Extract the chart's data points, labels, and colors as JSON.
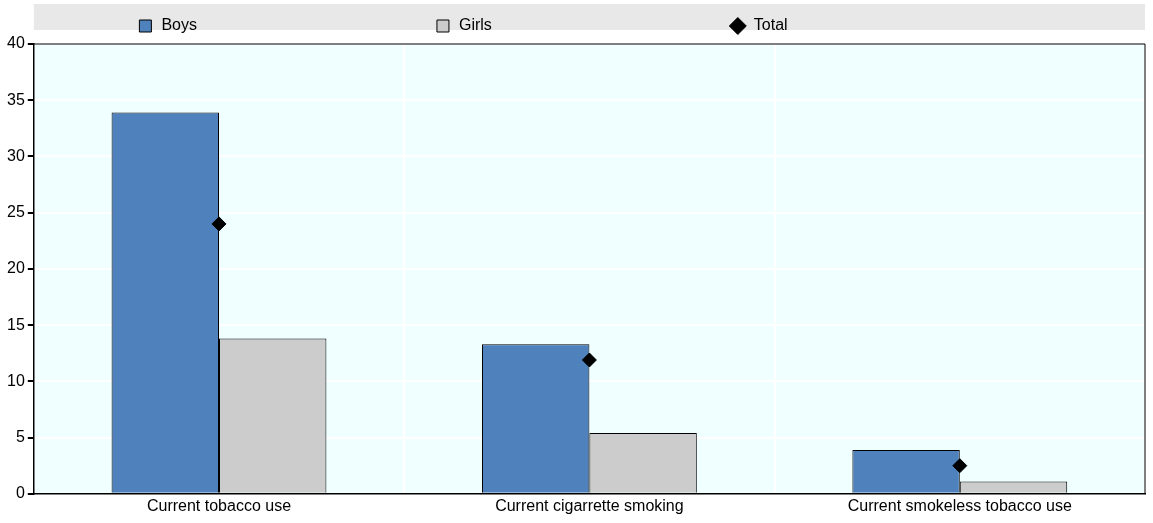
{
  "chart_data": {
    "type": "bar",
    "categories": [
      "Current tobacco use",
      "Current cigarrette smoking",
      "Current smokeless tobacco use"
    ],
    "series": [
      {
        "name": "Boys",
        "color": "#4f81bd",
        "values": [
          33.9,
          13.3,
          3.9
        ]
      },
      {
        "name": "Girls",
        "color": "#cccccc",
        "values": [
          13.8,
          5.4,
          1.1
        ]
      },
      {
        "name": "Total",
        "type": "scatter",
        "color": "#000000",
        "marker": "diamond",
        "x": [
          "Current tobacco use",
          "Current cigarrette smoking",
          "Current smokeless tobacco use"
        ],
        "values": [
          24.0,
          11.9,
          2.5
        ]
      }
    ],
    "ylim": [
      0,
      40
    ],
    "yticks": [
      0,
      5,
      10,
      15,
      20,
      25,
      30,
      35,
      40
    ],
    "grid": true,
    "legend": "top"
  }
}
